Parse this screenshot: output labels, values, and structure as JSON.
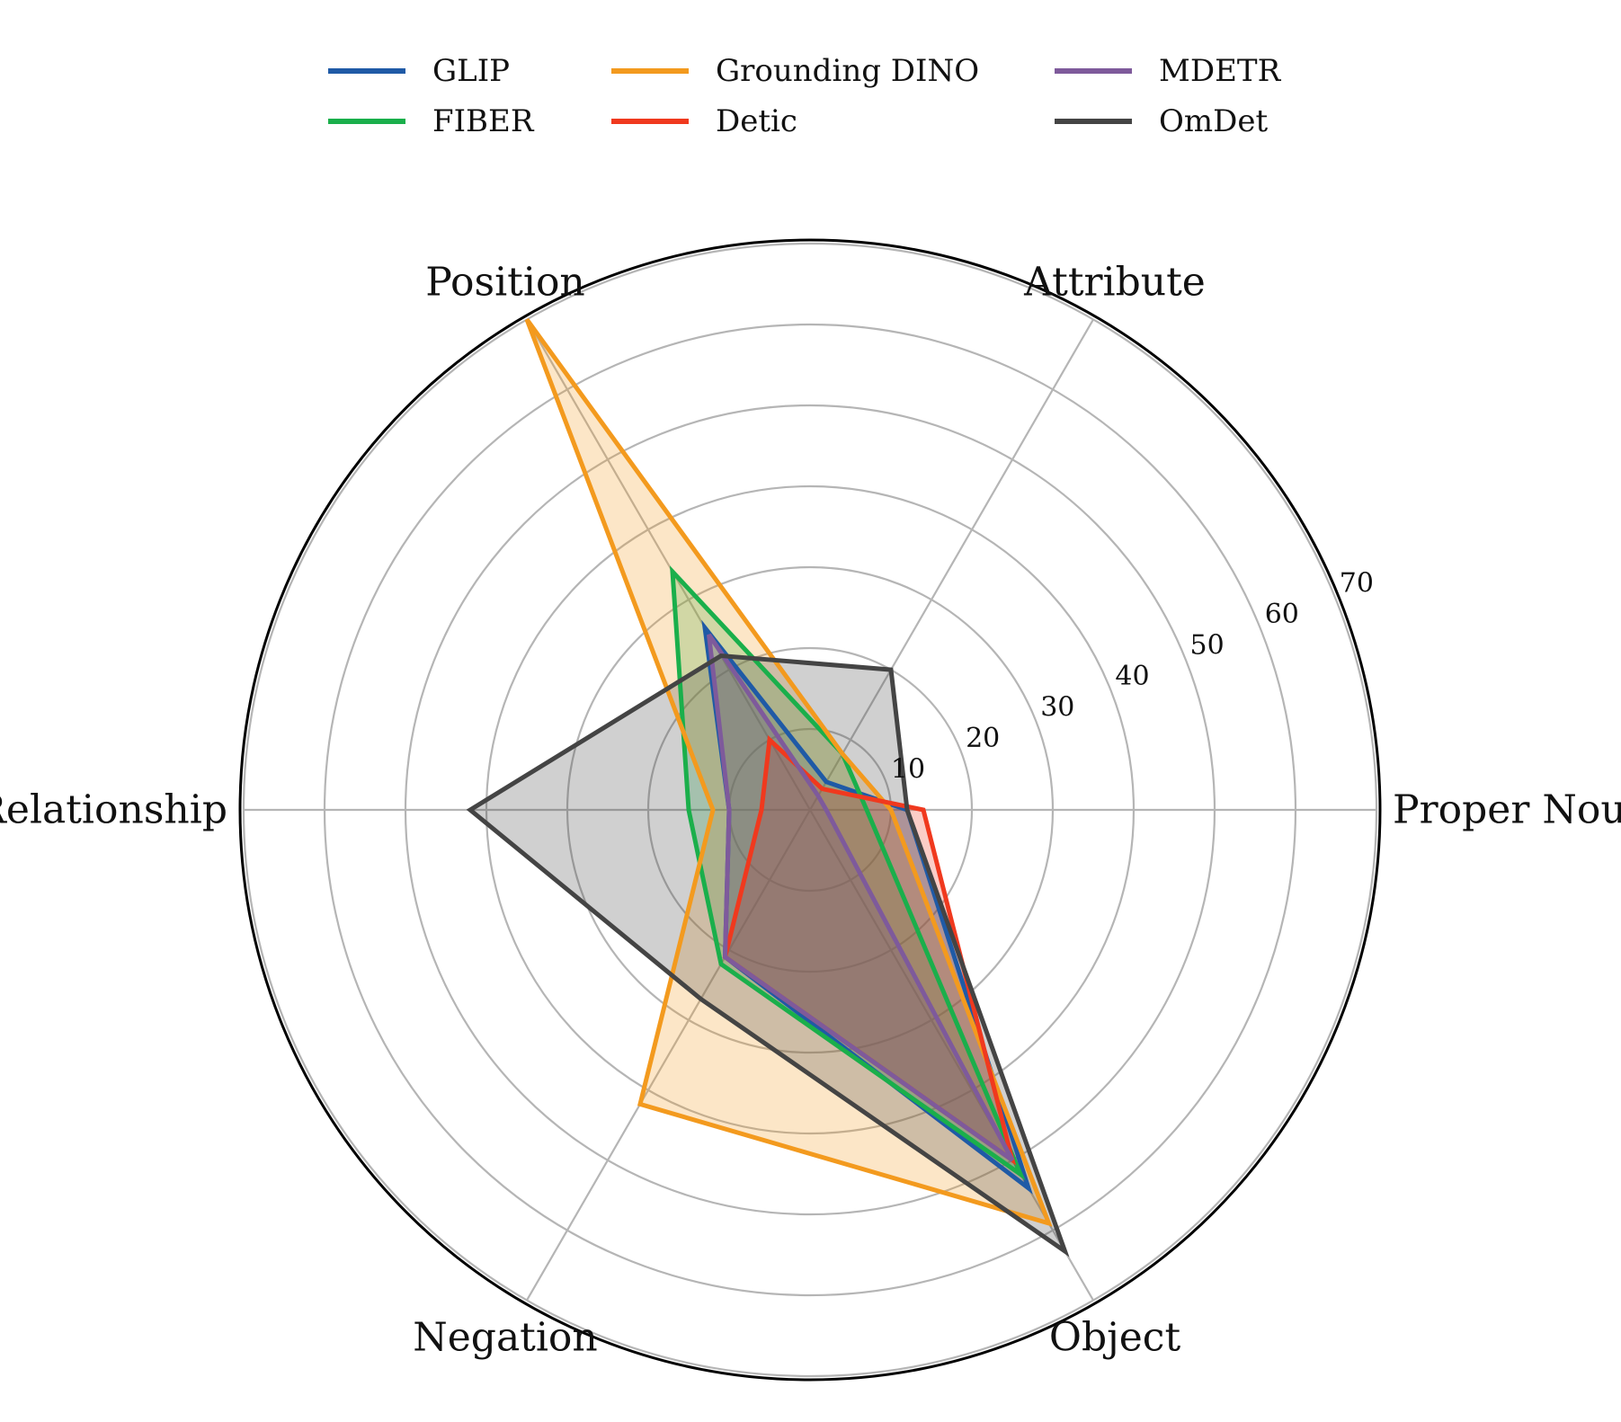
{
  "chart_data": {
    "type": "radar",
    "title": "",
    "axes": [
      "Proper Noun",
      "Attribute",
      "Position",
      "Relationship",
      "Negation",
      "Object"
    ],
    "rlim": [
      0,
      70
    ],
    "r_ticks": [
      10,
      20,
      30,
      40,
      50,
      60,
      70
    ],
    "grid": true,
    "legend_position": "top",
    "series": [
      {
        "name": "GLIP",
        "color": "#1f5aa6",
        "values": [
          12,
          4,
          26,
          10,
          21,
          54
        ]
      },
      {
        "name": "FIBER",
        "color": "#1aaf4b",
        "values": [
          7,
          8,
          34,
          15,
          22,
          52
        ]
      },
      {
        "name": "Grounding DINO",
        "color": "#f39a1e",
        "values": [
          10,
          8,
          70,
          12,
          42,
          59
        ]
      },
      {
        "name": "Detic",
        "color": "#f0391e",
        "values": [
          14,
          3,
          10,
          6,
          21,
          50
        ]
      },
      {
        "name": "MDETR",
        "color": "#7e5a9b",
        "values": [
          2,
          2,
          25,
          10,
          21,
          50
        ]
      },
      {
        "name": "OmDet",
        "color": "#444444",
        "values": [
          12,
          20,
          22,
          42,
          27,
          63
        ]
      }
    ]
  }
}
